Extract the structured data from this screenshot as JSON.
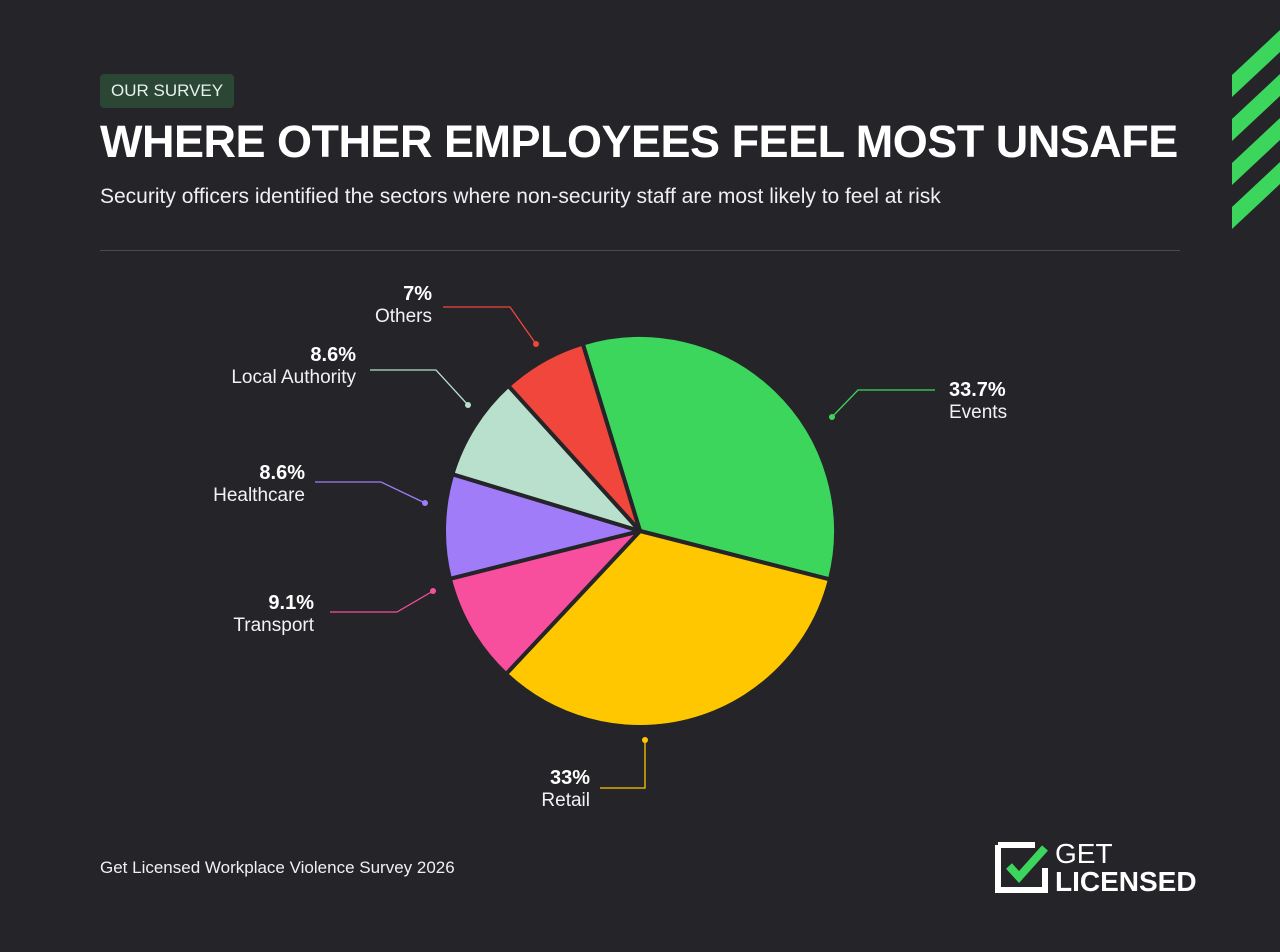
{
  "header": {
    "badge": "OUR SURVEY",
    "title": "WHERE OTHER EMPLOYEES FEEL MOST UNSAFE",
    "subtitle": "Security officers identified the sectors where non-security staff are most likely to feel at risk"
  },
  "chart_data": {
    "type": "pie",
    "title": "WHERE OTHER EMPLOYEES FEEL MOST UNSAFE",
    "unit": "%",
    "slices": [
      {
        "label": "Events",
        "value": 33.7,
        "display": "33.7%",
        "color": "#3dd65c"
      },
      {
        "label": "Retail",
        "value": 33,
        "display": "33%",
        "color": "#ffc700"
      },
      {
        "label": "Transport",
        "value": 9.1,
        "display": "9.1%",
        "color": "#f74f9e"
      },
      {
        "label": "Healthcare",
        "value": 8.6,
        "display": "8.6%",
        "color": "#a07cf8"
      },
      {
        "label": "Local Authority",
        "value": 8.6,
        "display": "8.6%",
        "color": "#b8e0cc"
      },
      {
        "label": "Others",
        "value": 7,
        "display": "7%",
        "color": "#f0463c"
      }
    ],
    "legend": "none (callout labels)"
  },
  "footer": {
    "source": "Get Licensed Workplace Violence Survey 2026",
    "logo_line1": "GET",
    "logo_line2": "LICENSED"
  },
  "colors": {
    "background": "#242429",
    "accent": "#3dd65c"
  }
}
